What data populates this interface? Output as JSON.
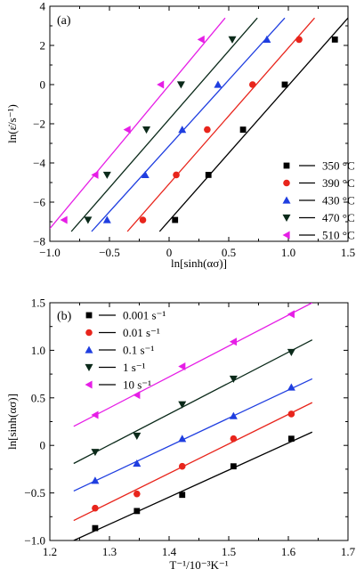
{
  "colors": {
    "black": "#000000",
    "red": "#e8251c",
    "blue": "#1f3ee0",
    "darkgreen": "#0b2a1a",
    "magenta": "#e61ee6"
  },
  "chart_data": [
    {
      "type": "scatter",
      "panel": "(a)",
      "xlabel": "ln[sinh(ασ)]",
      "ylabel": "ln(ε̇/s⁻¹)",
      "xlim": [
        -1.0,
        1.5
      ],
      "ylim": [
        -8,
        4
      ],
      "xticks": [
        -1.0,
        -0.5,
        0.0,
        0.5,
        1.0,
        1.5
      ],
      "xtick_labels": [
        "−1.0",
        "−0.5",
        "0",
        "0.5",
        "1.0",
        "1.5"
      ],
      "yticks": [
        -8,
        -6,
        -4,
        -2,
        0,
        2,
        4
      ],
      "ytick_labels": [
        "−8",
        "−6",
        "−4",
        "−2",
        "0",
        "2",
        "4"
      ],
      "legend_position": "bottom-right",
      "series": [
        {
          "name": "350 °C",
          "marker": "square",
          "color": "#000000",
          "points": [
            [
              0.05,
              -6.91
            ],
            [
              0.33,
              -4.61
            ],
            [
              0.62,
              -2.3
            ],
            [
              0.97,
              0.0
            ],
            [
              1.39,
              2.3
            ]
          ],
          "fit": [
            [
              -0.08,
              -7.5
            ],
            [
              1.5,
              3.4
            ]
          ]
        },
        {
          "name": "390 °C",
          "marker": "circle",
          "color": "#e8251c",
          "points": [
            [
              -0.22,
              -6.91
            ],
            [
              0.06,
              -4.61
            ],
            [
              0.32,
              -2.3
            ],
            [
              0.7,
              0.0
            ],
            [
              1.09,
              2.3
            ]
          ],
          "fit": [
            [
              -0.35,
              -7.5
            ],
            [
              1.22,
              3.4
            ]
          ]
        },
        {
          "name": "430 °C",
          "marker": "triangle-up",
          "color": "#1f3ee0",
          "points": [
            [
              -0.52,
              -6.91
            ],
            [
              -0.2,
              -4.61
            ],
            [
              0.11,
              -2.3
            ],
            [
              0.41,
              0.0
            ],
            [
              0.82,
              2.3
            ]
          ],
          "fit": [
            [
              -0.65,
              -7.5
            ],
            [
              0.97,
              3.4
            ]
          ]
        },
        {
          "name": "470 °C",
          "marker": "triangle-down",
          "color": "#0b2a1a",
          "points": [
            [
              -0.68,
              -6.91
            ],
            [
              -0.52,
              -4.61
            ],
            [
              -0.19,
              -2.3
            ],
            [
              0.1,
              0.0
            ],
            [
              0.53,
              2.3
            ]
          ],
          "fit": [
            [
              -0.82,
              -7.5
            ],
            [
              0.74,
              3.4
            ]
          ]
        },
        {
          "name": "510 °C",
          "marker": "triangle-left",
          "color": "#e61ee6",
          "points": [
            [
              -0.88,
              -6.91
            ],
            [
              -0.62,
              -4.61
            ],
            [
              -0.35,
              -2.3
            ],
            [
              -0.07,
              0.0
            ],
            [
              0.27,
              2.3
            ]
          ],
          "fit": [
            [
              -1.0,
              -7.35
            ],
            [
              0.47,
              3.4
            ]
          ]
        }
      ]
    },
    {
      "type": "scatter",
      "panel": "(b)",
      "xlabel": "T⁻¹/10⁻³K⁻¹",
      "ylabel": "ln[sinh(ασ)]",
      "xlim": [
        1.2,
        1.7
      ],
      "ylim": [
        -1.0,
        1.5
      ],
      "xticks": [
        1.2,
        1.3,
        1.4,
        1.5,
        1.6,
        1.7
      ],
      "xtick_labels": [
        "1.2",
        "1.3",
        "1.4",
        "1.5",
        "1.6",
        "1.7"
      ],
      "yticks": [
        -1.0,
        -0.5,
        0.0,
        0.5,
        1.0,
        1.5
      ],
      "ytick_labels": [
        "−1.0",
        "−0.5",
        "0",
        "0.5",
        "1.0",
        "1.5"
      ],
      "legend_position": "top-left",
      "series": [
        {
          "name": "0.001 s⁻¹",
          "marker": "square",
          "color": "#000000",
          "points": [
            [
              1.276,
              -0.87
            ],
            [
              1.346,
              -0.69
            ],
            [
              1.422,
              -0.52
            ],
            [
              1.508,
              -0.22
            ],
            [
              1.605,
              0.07
            ]
          ],
          "fit": [
            [
              1.24,
              -1.0
            ],
            [
              1.64,
              0.14
            ]
          ]
        },
        {
          "name": "0.01 s⁻¹",
          "marker": "circle",
          "color": "#e8251c",
          "points": [
            [
              1.276,
              -0.66
            ],
            [
              1.346,
              -0.51
            ],
            [
              1.422,
              -0.22
            ],
            [
              1.508,
              0.07
            ],
            [
              1.605,
              0.33
            ]
          ],
          "fit": [
            [
              1.24,
              -0.79
            ],
            [
              1.64,
              0.45
            ]
          ]
        },
        {
          "name": "0.1 s⁻¹",
          "marker": "triangle-up",
          "color": "#1f3ee0",
          "points": [
            [
              1.276,
              -0.37
            ],
            [
              1.346,
              -0.19
            ],
            [
              1.422,
              0.07
            ],
            [
              1.508,
              0.31
            ],
            [
              1.605,
              0.61
            ]
          ],
          "fit": [
            [
              1.24,
              -0.48
            ],
            [
              1.64,
              0.7
            ]
          ]
        },
        {
          "name": "1 s⁻¹",
          "marker": "triangle-down",
          "color": "#0b2a1a",
          "points": [
            [
              1.276,
              -0.07
            ],
            [
              1.346,
              0.1
            ],
            [
              1.422,
              0.43
            ],
            [
              1.508,
              0.7
            ],
            [
              1.605,
              0.98
            ]
          ],
          "fit": [
            [
              1.24,
              -0.19
            ],
            [
              1.64,
              1.11
            ]
          ]
        },
        {
          "name": "10 s⁻¹",
          "marker": "triangle-left",
          "color": "#e61ee6",
          "points": [
            [
              1.276,
              0.32
            ],
            [
              1.346,
              0.53
            ],
            [
              1.422,
              0.83
            ],
            [
              1.508,
              1.09
            ],
            [
              1.605,
              1.38
            ]
          ],
          "fit": [
            [
              1.24,
              0.2
            ],
            [
              1.64,
              1.5
            ]
          ]
        }
      ]
    }
  ]
}
